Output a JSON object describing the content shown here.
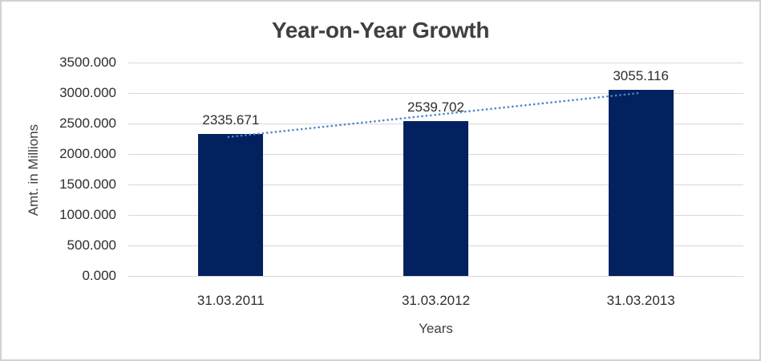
{
  "chart": {
    "title": "Year-on-Year Growth",
    "y_axis_title": "Amt. in Millions",
    "x_axis_title": "Years"
  },
  "chart_data": {
    "type": "bar",
    "title": "Year-on-Year Growth",
    "categories": [
      "31.03.2011",
      "31.03.2012",
      "31.03.2013"
    ],
    "values": [
      2335.671,
      2539.702,
      3055.116
    ],
    "data_labels": [
      "2335.671",
      "2539.702",
      "3055.116"
    ],
    "xlabel": "Years",
    "ylabel": "Amt. in Millions",
    "ylim": [
      0,
      3500
    ],
    "y_tick_step": 500,
    "y_tick_labels": [
      "3500.000",
      "3000.000",
      "2500.000",
      "2000.000",
      "1500.000",
      "1000.000",
      "500.000",
      "0.000"
    ],
    "grid": true,
    "legend": false,
    "bar_color": "#04215f",
    "gridline_color": "#d9d9d9",
    "trendline": {
      "type": "linear",
      "style": "dotted",
      "color": "#4a86c8"
    }
  }
}
